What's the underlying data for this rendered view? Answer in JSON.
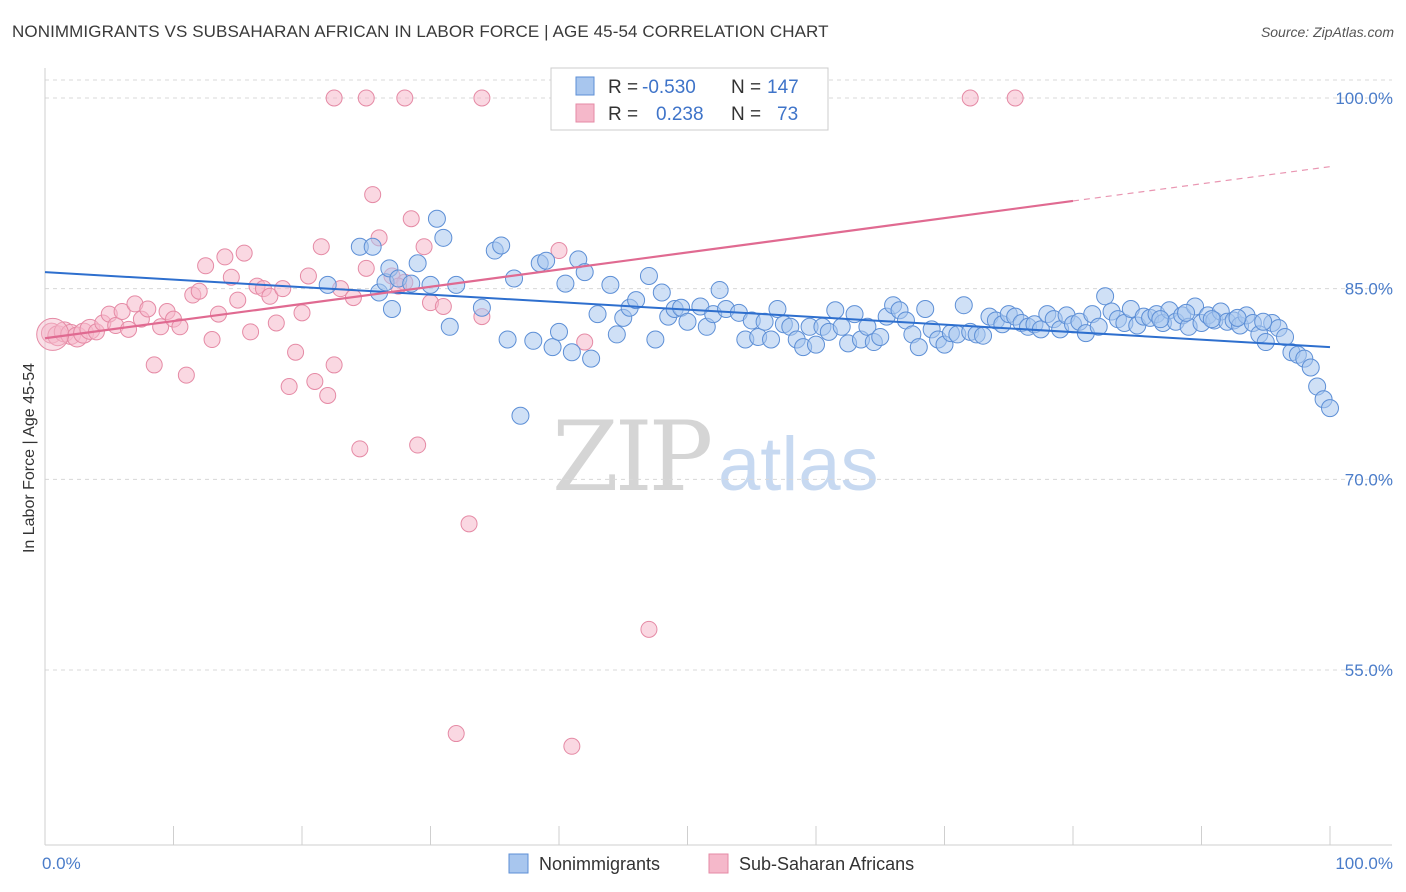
{
  "title": "NONIMMIGRANTS VS SUBSAHARAN AFRICAN IN LABOR FORCE | AGE 45-54 CORRELATION CHART",
  "source": "Source: ZipAtlas.com",
  "watermark": {
    "zip": "ZIP",
    "atlas": "atlas"
  },
  "legend": {
    "rows": [
      {
        "r_label": "R =",
        "r_value": "-0.530",
        "n_label": "N =",
        "n_value": "147"
      },
      {
        "r_label": "R =",
        "r_value": "0.238",
        "n_label": "N =",
        "n_value": "73"
      }
    ]
  },
  "colors": {
    "blue_fill": "#a8c6ee",
    "blue_stroke": "#5d8fd6",
    "blue_line": "#2e6fce",
    "pink_fill": "#f5b8ca",
    "pink_stroke": "#e58aa5",
    "pink_line": "#e06a91",
    "grid": "#d8d8d8",
    "tick_text": "#4a7cc9"
  },
  "chart_data": {
    "type": "scatter",
    "title": "NONIMMIGRANTS VS SUBSAHARAN AFRICAN IN LABOR FORCE | AGE 45-54 CORRELATION CHART",
    "xlabel": "",
    "ylabel": "In Labor Force | Age 45-54",
    "xlim": [
      0,
      100
    ],
    "ylim": [
      40,
      101.5
    ],
    "x_ticks": [
      "0.0%",
      "100.0%"
    ],
    "y_ticks": [
      {
        "value": 100,
        "label": "100.0%"
      },
      {
        "value": 85,
        "label": "85.0%"
      },
      {
        "value": 70,
        "label": "70.0%"
      },
      {
        "value": 55,
        "label": "55.0%"
      }
    ],
    "grid": true,
    "legend_position": "top-center",
    "series": [
      {
        "name": "Nonimmigrants",
        "color": "#a8c6ee",
        "trend": {
          "x0": 0,
          "y0": 86.3,
          "x1": 100,
          "y1": 80.4
        },
        "points": [
          [
            22,
            85.3
          ],
          [
            24.5,
            88.3
          ],
          [
            25.5,
            88.3
          ],
          [
            26,
            84.7
          ],
          [
            26.5,
            85.5
          ],
          [
            26.8,
            86.6
          ],
          [
            27,
            83.4
          ],
          [
            27.5,
            85.8
          ],
          [
            28.5,
            85.4
          ],
          [
            29,
            87
          ],
          [
            30,
            85.3
          ],
          [
            30.5,
            90.5
          ],
          [
            31,
            89
          ],
          [
            31.5,
            82
          ],
          [
            32,
            85.3
          ],
          [
            34,
            83.5
          ],
          [
            35,
            88
          ],
          [
            35.5,
            88.4
          ],
          [
            36,
            81
          ],
          [
            36.5,
            85.8
          ],
          [
            37,
            75
          ],
          [
            38,
            80.9
          ],
          [
            38.5,
            87
          ],
          [
            39,
            87.2
          ],
          [
            39.5,
            80.4
          ],
          [
            40,
            81.6
          ],
          [
            40.5,
            85.4
          ],
          [
            41,
            80
          ],
          [
            41.5,
            87.3
          ],
          [
            42,
            86.3
          ],
          [
            42.5,
            79.5
          ],
          [
            43,
            83
          ],
          [
            44,
            85.3
          ],
          [
            44.5,
            81.4
          ],
          [
            45,
            82.7
          ],
          [
            45.5,
            83.5
          ],
          [
            46,
            84.1
          ],
          [
            47,
            86
          ],
          [
            47.5,
            81
          ],
          [
            48,
            84.7
          ],
          [
            48.5,
            82.8
          ],
          [
            49,
            83.4
          ],
          [
            49.5,
            83.5
          ],
          [
            50,
            82.4
          ],
          [
            51,
            83.6
          ],
          [
            51.5,
            82
          ],
          [
            52,
            83
          ],
          [
            52.5,
            84.9
          ],
          [
            53,
            83.4
          ],
          [
            54,
            83.1
          ],
          [
            54.5,
            81
          ],
          [
            55,
            82.5
          ],
          [
            55.5,
            81.2
          ],
          [
            56,
            82.4
          ],
          [
            56.5,
            81
          ],
          [
            57,
            83.4
          ],
          [
            57.5,
            82.2
          ],
          [
            58,
            82
          ],
          [
            58.5,
            81
          ],
          [
            59,
            80.4
          ],
          [
            59.5,
            82
          ],
          [
            60,
            80.6
          ],
          [
            60.5,
            82
          ],
          [
            61,
            81.6
          ],
          [
            61.5,
            83.3
          ],
          [
            62,
            82
          ],
          [
            62.5,
            80.7
          ],
          [
            63,
            83
          ],
          [
            63.5,
            81
          ],
          [
            64,
            82
          ],
          [
            64.5,
            80.8
          ],
          [
            65,
            81.2
          ],
          [
            65.5,
            82.8
          ],
          [
            66,
            83.7
          ],
          [
            66.5,
            83.3
          ],
          [
            67,
            82.5
          ],
          [
            67.5,
            81.4
          ],
          [
            68,
            80.4
          ],
          [
            68.5,
            83.4
          ],
          [
            69,
            81.8
          ],
          [
            69.5,
            81
          ],
          [
            70,
            80.6
          ],
          [
            70.5,
            81.5
          ],
          [
            71,
            81.4
          ],
          [
            71.5,
            83.7
          ],
          [
            72,
            81.6
          ],
          [
            72.5,
            81.4
          ],
          [
            73,
            81.3
          ],
          [
            73.5,
            82.8
          ],
          [
            74,
            82.5
          ],
          [
            74.5,
            82.2
          ],
          [
            75,
            83
          ],
          [
            75.5,
            82.8
          ],
          [
            76,
            82.3
          ],
          [
            76.5,
            82
          ],
          [
            77,
            82.2
          ],
          [
            77.5,
            81.8
          ],
          [
            78,
            83
          ],
          [
            78.5,
            82.6
          ],
          [
            79,
            81.8
          ],
          [
            79.5,
            82.9
          ],
          [
            80,
            82.2
          ],
          [
            80.5,
            82.4
          ],
          [
            81,
            81.5
          ],
          [
            81.5,
            83
          ],
          [
            82,
            82
          ],
          [
            82.5,
            84.4
          ],
          [
            83,
            83.2
          ],
          [
            83.5,
            82.6
          ],
          [
            84,
            82.3
          ],
          [
            84.5,
            83.4
          ],
          [
            85,
            82.1
          ],
          [
            85.5,
            82.8
          ],
          [
            86,
            82.7
          ],
          [
            86.5,
            83
          ],
          [
            87,
            82.3
          ],
          [
            87.5,
            83.3
          ],
          [
            88,
            82.4
          ],
          [
            88.5,
            82.9
          ],
          [
            89,
            82
          ],
          [
            89.5,
            83.6
          ],
          [
            90,
            82.3
          ],
          [
            90.5,
            82.9
          ],
          [
            91,
            82.5
          ],
          [
            91.5,
            83.2
          ],
          [
            92,
            82.4
          ],
          [
            92.5,
            82.5
          ],
          [
            93,
            82.1
          ],
          [
            93.5,
            82.9
          ],
          [
            94,
            82.3
          ],
          [
            94.5,
            81.4
          ],
          [
            95,
            80.8
          ],
          [
            95.5,
            82.3
          ],
          [
            96,
            81.9
          ],
          [
            96.5,
            81.2
          ],
          [
            97,
            80
          ],
          [
            97.5,
            79.8
          ],
          [
            98,
            79.5
          ],
          [
            98.5,
            78.8
          ],
          [
            99,
            77.3
          ],
          [
            99.5,
            76.3
          ],
          [
            100,
            75.6
          ],
          [
            94.8,
            82.4
          ],
          [
            92.8,
            82.7
          ],
          [
            90.8,
            82.6
          ],
          [
            88.8,
            83.1
          ],
          [
            86.8,
            82.6
          ]
        ]
      },
      {
        "name": "Sub-Saharan Africans",
        "color": "#f5b8ca",
        "trend": {
          "x0": 0,
          "y0": 81.1,
          "x1": 80,
          "y1": 91.9,
          "dash_to_x": 100,
          "dash_to_y": 94.6
        },
        "points": [
          [
            0.5,
            81.5
          ],
          [
            1,
            81.3
          ],
          [
            1.5,
            81.6
          ],
          [
            2,
            81.4
          ],
          [
            2.5,
            81.2
          ],
          [
            3,
            81.5
          ],
          [
            3.5,
            81.8
          ],
          [
            4,
            81.6
          ],
          [
            4.5,
            82.3
          ],
          [
            5,
            83
          ],
          [
            5.5,
            82.1
          ],
          [
            6,
            83.2
          ],
          [
            6.5,
            81.8
          ],
          [
            7,
            83.8
          ],
          [
            7.5,
            82.6
          ],
          [
            8,
            83.4
          ],
          [
            8.5,
            79
          ],
          [
            9,
            82
          ],
          [
            9.5,
            83.2
          ],
          [
            10,
            82.6
          ],
          [
            10.5,
            82
          ],
          [
            11,
            78.2
          ],
          [
            11.5,
            84.5
          ],
          [
            12,
            84.8
          ],
          [
            12.5,
            86.8
          ],
          [
            13,
            81
          ],
          [
            13.5,
            83
          ],
          [
            14,
            87.5
          ],
          [
            14.5,
            85.9
          ],
          [
            15,
            84.1
          ],
          [
            15.5,
            87.8
          ],
          [
            16,
            81.6
          ],
          [
            16.5,
            85.2
          ],
          [
            17,
            85
          ],
          [
            17.5,
            84.4
          ],
          [
            18,
            82.3
          ],
          [
            18.5,
            85
          ],
          [
            19,
            77.3
          ],
          [
            19.5,
            80
          ],
          [
            20,
            83.1
          ],
          [
            20.5,
            86
          ],
          [
            21,
            77.7
          ],
          [
            21.5,
            88.3
          ],
          [
            22,
            76.6
          ],
          [
            22.5,
            79
          ],
          [
            23,
            85
          ],
          [
            24,
            84.3
          ],
          [
            24.5,
            72.4
          ],
          [
            25,
            86.6
          ],
          [
            25.5,
            92.4
          ],
          [
            26,
            89
          ],
          [
            27,
            86
          ],
          [
            28,
            85.5
          ],
          [
            28.5,
            90.5
          ],
          [
            29,
            72.7
          ],
          [
            29.5,
            88.3
          ],
          [
            30,
            83.9
          ],
          [
            31,
            83.6
          ],
          [
            32,
            50
          ],
          [
            33,
            66.5
          ],
          [
            34,
            82.8
          ],
          [
            40,
            88
          ],
          [
            41,
            49
          ],
          [
            42,
            80.8
          ],
          [
            47,
            58.2
          ],
          [
            22.5,
            100
          ],
          [
            25,
            100
          ],
          [
            28,
            100
          ],
          [
            34,
            100
          ],
          [
            48,
            100
          ],
          [
            72,
            100
          ],
          [
            75.5,
            100
          ],
          [
            27.5,
            85.2
          ]
        ]
      }
    ]
  }
}
